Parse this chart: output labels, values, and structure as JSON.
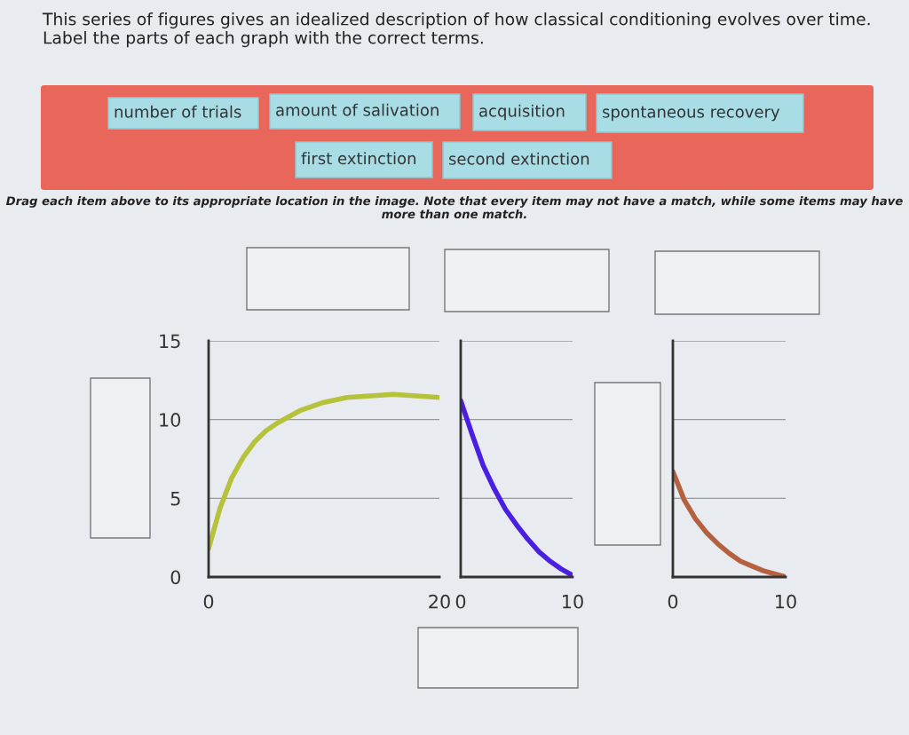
{
  "chart_data": [
    {
      "type": "line",
      "xlim": [
        0,
        20
      ],
      "xticks": [
        0,
        20
      ],
      "ylim": [
        0,
        15
      ],
      "yticks": [
        0,
        5,
        10,
        15
      ],
      "grid": "y",
      "x": [
        0,
        1,
        2,
        3,
        4,
        5,
        6,
        8,
        10,
        12,
        14,
        16,
        18,
        20
      ],
      "series": [
        {
          "color": "#b5c23a",
          "values": [
            1.8,
            4.4,
            6.3,
            7.6,
            8.6,
            9.3,
            9.8,
            10.6,
            11.1,
            11.4,
            11.5,
            11.6,
            11.5,
            11.4
          ]
        }
      ],
      "annotations": [
        "This series of figures gives an idealized description of how classical conditioning evolves over time. Label the parts of each graph with the correct terms.",
        "number of trials",
        "amount of salivation",
        "acquisition",
        "spontaneous recovery",
        "first extinction",
        "second extinction",
        "Drag each item above to its appropriate location in the image. Note that every item may not have a match, while some items may have more than one match."
      ]
    },
    {
      "type": "line",
      "xlim": [
        0,
        10
      ],
      "xticks": [
        0,
        10
      ],
      "ylim": [
        0,
        15
      ],
      "yticks": [
        0,
        5,
        10,
        15
      ],
      "grid": "y",
      "tick_labels": "x",
      "x": [
        0,
        1,
        2,
        3,
        4,
        5,
        6,
        7,
        8,
        9,
        10
      ],
      "series": [
        {
          "color": "#4b1fe0",
          "values": [
            11.2,
            9.1,
            7.1,
            5.6,
            4.3,
            3.3,
            2.4,
            1.6,
            1.0,
            0.5,
            0.1
          ]
        }
      ]
    },
    {
      "type": "line",
      "xlim": [
        0,
        10
      ],
      "xticks": [
        0,
        10
      ],
      "ylim": [
        0,
        15
      ],
      "yticks": [
        0,
        5,
        10,
        15
      ],
      "grid": "y",
      "tick_labels": "x",
      "x": [
        0,
        1,
        2,
        3,
        4,
        5,
        6,
        7,
        8,
        9,
        10
      ],
      "series": [
        {
          "color": "#b5603f",
          "values": [
            6.7,
            4.9,
            3.7,
            2.8,
            2.1,
            1.5,
            1.0,
            0.7,
            0.4,
            0.2,
            0.0
          ]
        }
      ]
    }
  ]
}
